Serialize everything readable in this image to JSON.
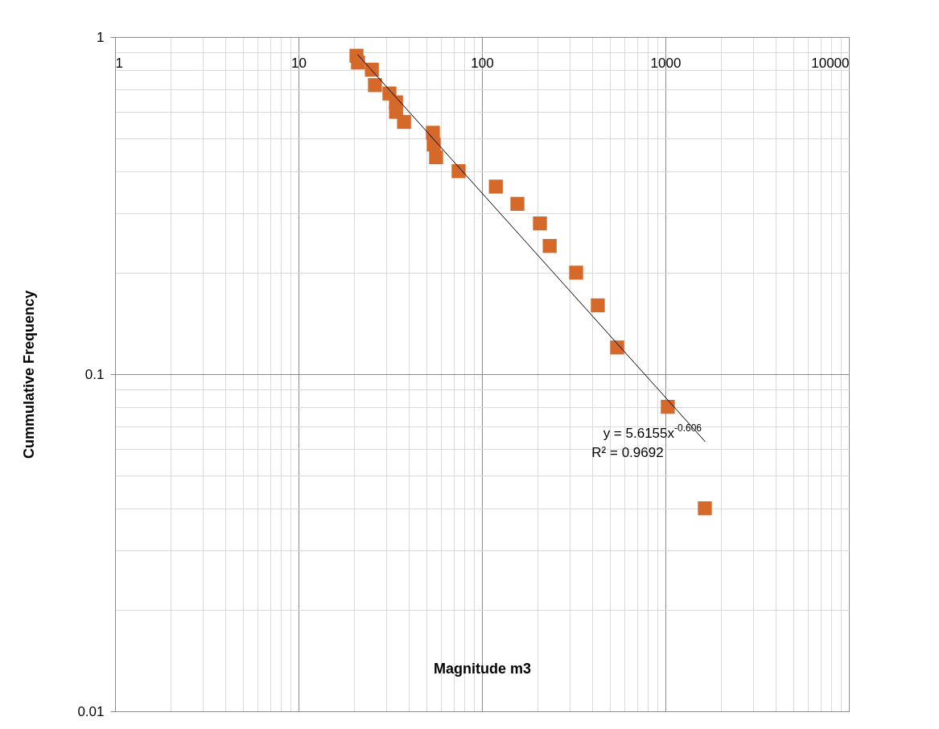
{
  "chart_data": {
    "type": "scatter",
    "xlabel": "Magnitude m3",
    "ylabel": "Cummulative Frequency",
    "log": "xy",
    "grid": true,
    "xlim": [
      1,
      10000
    ],
    "ylim": [
      0.01,
      1
    ],
    "xticks": [
      1,
      {
        "value": 2,
        "label": null
      },
      {
        "value": 3,
        "label": null
      },
      {
        "value": 4,
        "label": null
      },
      {
        "value": 5,
        "label": null
      },
      {
        "value": 6,
        "label": null
      },
      {
        "value": 7,
        "label": null
      },
      {
        "value": 8,
        "label": null
      },
      {
        "value": 9,
        "label": null
      },
      10,
      {
        "value": 20,
        "label": null
      },
      {
        "value": 30,
        "label": null
      },
      {
        "value": 40,
        "label": null
      },
      {
        "value": 50,
        "label": null
      },
      {
        "value": 60,
        "label": null
      },
      {
        "value": 70,
        "label": null
      },
      {
        "value": 80,
        "label": null
      },
      {
        "value": 90,
        "label": null
      },
      100,
      {
        "value": 200,
        "label": null
      },
      {
        "value": 300,
        "label": null
      },
      {
        "value": 400,
        "label": null
      },
      {
        "value": 500,
        "label": null
      },
      {
        "value": 600,
        "label": null
      },
      {
        "value": 700,
        "label": null
      },
      {
        "value": 800,
        "label": null
      },
      {
        "value": 900,
        "label": null
      },
      1000,
      {
        "value": 2000,
        "label": null
      },
      {
        "value": 3000,
        "label": null
      },
      {
        "value": 4000,
        "label": null
      },
      {
        "value": 5000,
        "label": null
      },
      {
        "value": 6000,
        "label": null
      },
      {
        "value": 7000,
        "label": null
      },
      {
        "value": 8000,
        "label": null
      },
      {
        "value": 9000,
        "label": null
      },
      10000
    ],
    "yticks": [
      0.01,
      {
        "value": 0.02,
        "label": null
      },
      {
        "value": 0.03,
        "label": null
      },
      {
        "value": 0.04,
        "label": null
      },
      {
        "value": 0.05,
        "label": null
      },
      {
        "value": 0.06,
        "label": null
      },
      {
        "value": 0.07,
        "label": null
      },
      {
        "value": 0.08,
        "label": null
      },
      {
        "value": 0.09,
        "label": null
      },
      0.1,
      {
        "value": 0.2,
        "label": null
      },
      {
        "value": 0.3,
        "label": null
      },
      {
        "value": 0.4,
        "label": null
      },
      {
        "value": 0.5,
        "label": null
      },
      {
        "value": 0.6,
        "label": null
      },
      {
        "value": 0.7,
        "label": null
      },
      {
        "value": 0.8,
        "label": null
      },
      {
        "value": 0.9,
        "label": null
      },
      1
    ],
    "series": [
      {
        "marker": "square",
        "color": "#d4692a",
        "x": [
          20.7,
          21.1,
          25.1,
          26.1,
          31.3,
          34,
          34,
          37.6,
          54,
          54.6,
          56.2,
          74.6,
          119,
          156,
          207,
          234,
          326,
          428,
          546,
          1030,
          1640
        ],
        "values": [
          0.88,
          0.84,
          0.8,
          0.72,
          0.68,
          0.64,
          0.6,
          0.56,
          0.52,
          0.48,
          0.44,
          0.4,
          0.36,
          0.32,
          0.28,
          0.24,
          0.2,
          0.16,
          0.12,
          0.08,
          0.04
        ]
      },
      {
        "type": "line",
        "color": "#000000",
        "x": [
          21,
          1650
        ],
        "values": [
          0.887,
          0.063
        ]
      }
    ],
    "annotations": [
      "y = 5.6155x$^{-0.606}$",
      "R² = 0.9692"
    ]
  }
}
